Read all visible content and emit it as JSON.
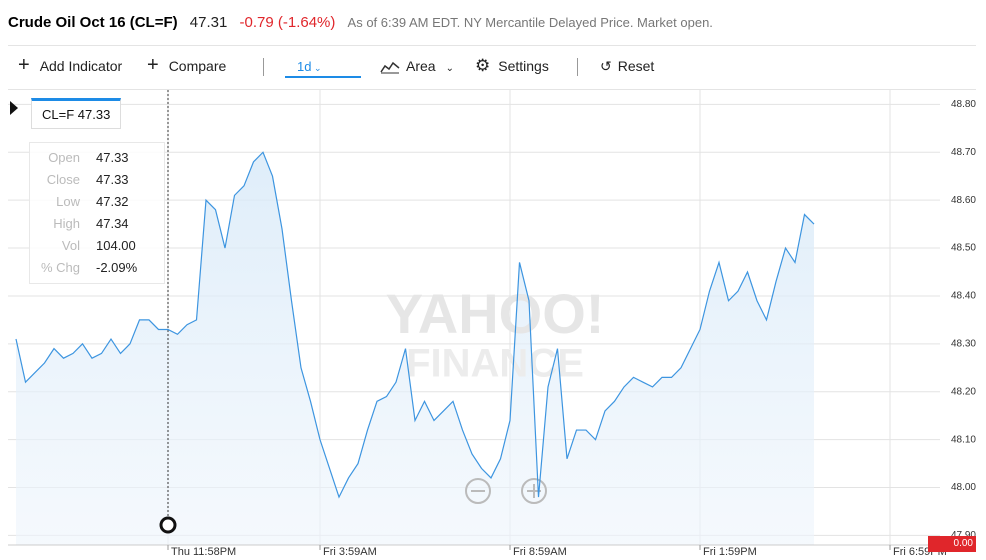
{
  "header": {
    "title": "Crude Oil Oct 16 (CL=F)",
    "price": "47.31",
    "change": "-0.79 (-1.64%)",
    "note": "As of 6:39 AM EDT. NY Mercantile Delayed Price. Market open."
  },
  "toolbar": {
    "add_indicator": "Add Indicator",
    "compare": "Compare",
    "range": "1d",
    "chart_type": "Area",
    "settings": "Settings",
    "reset": "Reset"
  },
  "cursor_label": "CL=F 47.33",
  "tooltip": {
    "rows": [
      {
        "label": "Open",
        "value": "47.33"
      },
      {
        "label": "Close",
        "value": "47.33"
      },
      {
        "label": "Low",
        "value": "47.32"
      },
      {
        "label": "High",
        "value": "47.34"
      },
      {
        "label": "Vol",
        "value": "104.00"
      },
      {
        "label": "% Chg",
        "value": "-2.09%"
      }
    ]
  },
  "watermark": [
    "YAHOO!",
    "FINANCE"
  ],
  "volume_tag": "0.00",
  "chart_data": {
    "type": "area",
    "color": "#3d95e0",
    "grid": true,
    "ylim": [
      47.88,
      48.83
    ],
    "yticks": [
      {
        "value": 47.9,
        "label": "47.90"
      },
      {
        "value": 48.0,
        "label": "48.00"
      },
      {
        "value": 48.1,
        "label": "48.10"
      },
      {
        "value": 48.2,
        "label": "48.20"
      },
      {
        "value": 48.3,
        "label": "48.30"
      },
      {
        "value": 48.4,
        "label": "48.40"
      },
      {
        "value": 48.5,
        "label": "48.50"
      },
      {
        "value": 48.6,
        "label": "48.60"
      },
      {
        "value": 48.7,
        "label": "48.70"
      },
      {
        "value": 48.8,
        "label": "48.80"
      }
    ],
    "categories": [
      null,
      null,
      null,
      null,
      null,
      null,
      null,
      null,
      null,
      null,
      null,
      null,
      null,
      null,
      null,
      null,
      "Thu 11:58PM",
      null,
      null,
      null,
      null,
      null,
      null,
      null,
      null,
      null,
      null,
      null,
      null,
      null,
      null,
      null,
      "Fri 3:59AM",
      null,
      null,
      null,
      null,
      null,
      null,
      null,
      null,
      null,
      null,
      null,
      null,
      null,
      null,
      null,
      null,
      null,
      null,
      null,
      "Fri 8:59AM",
      null,
      null,
      null,
      null,
      null,
      null,
      null,
      null,
      null,
      null,
      null,
      null,
      null,
      null,
      null,
      null,
      null,
      null,
      null,
      "Fri 1:59PM",
      null,
      null,
      null,
      null,
      null,
      null,
      null,
      null,
      null,
      null,
      null,
      null,
      null,
      null,
      null,
      null,
      null,
      null,
      null,
      "Fri 6:59PM"
    ],
    "values": [
      48.31,
      48.22,
      48.24,
      48.26,
      48.29,
      48.27,
      48.28,
      48.3,
      48.27,
      48.28,
      48.31,
      48.28,
      48.3,
      48.35,
      48.35,
      48.33,
      48.33,
      48.32,
      48.34,
      48.35,
      48.6,
      48.58,
      48.5,
      48.61,
      48.63,
      48.68,
      48.7,
      48.65,
      48.54,
      48.39,
      48.25,
      48.18,
      48.1,
      48.04,
      47.98,
      48.02,
      48.05,
      48.12,
      48.18,
      48.19,
      48.22,
      48.29,
      48.14,
      48.18,
      48.14,
      48.16,
      48.18,
      48.12,
      48.07,
      48.04,
      48.02,
      48.06,
      48.14,
      48.47,
      48.39,
      47.98,
      48.21,
      48.29,
      48.06,
      48.12,
      48.12,
      48.1,
      48.16,
      48.18,
      48.21,
      48.23,
      48.22,
      48.21,
      48.23,
      48.23,
      48.25,
      48.29,
      48.33,
      48.41,
      48.47,
      48.39,
      48.41,
      48.45,
      48.39,
      48.35,
      48.43,
      48.5,
      48.47,
      48.57,
      48.55,
      null,
      null,
      null,
      null,
      null,
      null,
      null,
      null
    ]
  }
}
